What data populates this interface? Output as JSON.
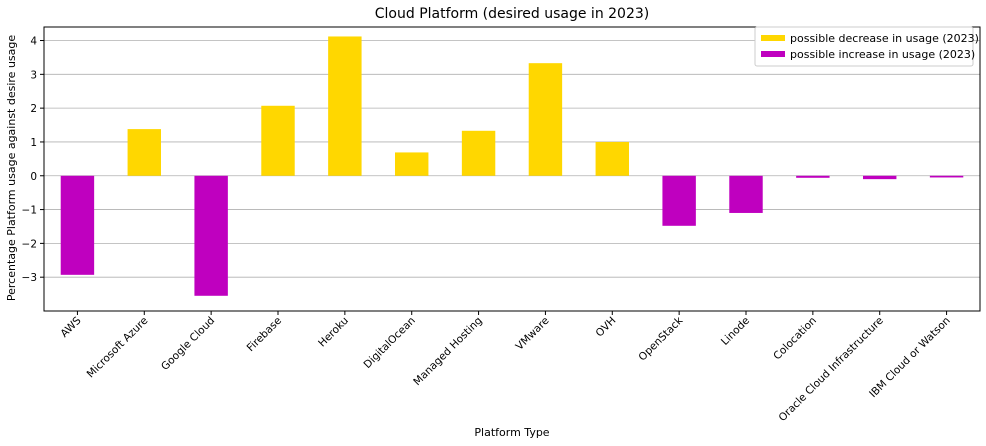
{
  "chart_data": {
    "type": "bar",
    "title": "Cloud Platform (desired usage in 2023)",
    "xlabel": "Platform Type",
    "ylabel": "Percentage Platform usage against desire usage",
    "ylim": [
      -4.0,
      4.4
    ],
    "yticks": [
      -3,
      -2,
      -1,
      0,
      1,
      2,
      3,
      4
    ],
    "grid": "horizontal",
    "legend_position": "top-right",
    "categories": [
      "AWS",
      "Microsoft Azure",
      "Google Cloud",
      "Firebase",
      "Heroku",
      "DigitalOcean",
      "Managed Hosting",
      "VMware",
      "OVH",
      "OpenStack",
      "Linode",
      "Colocation",
      "Oracle Cloud Infrastructure",
      "IBM Cloud or Watson"
    ],
    "values": [
      -2.93,
      1.38,
      -3.55,
      2.07,
      4.12,
      0.69,
      1.33,
      3.33,
      1.0,
      -1.48,
      -1.1,
      -0.06,
      -0.1,
      -0.05
    ],
    "legend": [
      {
        "label": "possible decrease in usage (2023)",
        "color": "#FFD700"
      },
      {
        "label": "possible increase in usage (2023)",
        "color": "#BF00BF"
      }
    ],
    "colors": {
      "positive": "#FFD700",
      "negative": "#BF00BF"
    }
  }
}
